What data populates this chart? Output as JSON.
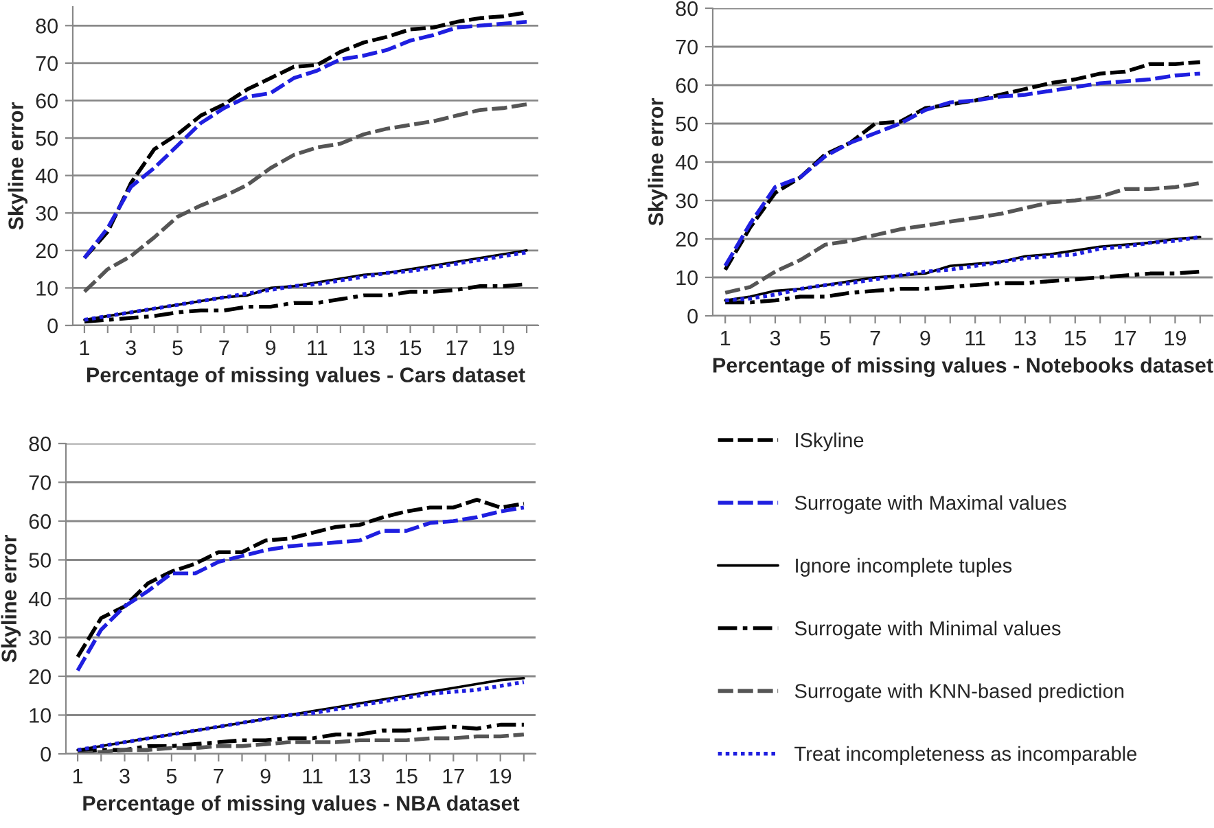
{
  "chart_data": [
    {
      "type": "line",
      "xlabel": "Percentage of missing values - Cars dataset",
      "ylabel": "Skyline error",
      "categories": [
        "1",
        null,
        "3",
        null,
        "5",
        null,
        "7",
        null,
        "9",
        null,
        "11",
        null,
        "13",
        null,
        "15",
        null,
        "17",
        null,
        "19",
        null
      ],
      "ylim": [
        0,
        85
      ],
      "yticks": [
        0,
        10,
        20,
        30,
        40,
        50,
        60,
        70,
        80
      ],
      "grid": "y",
      "legend": false,
      "series": [
        {
          "color": "#000000",
          "line_style": "dashed",
          "values": [
            18,
            25,
            38,
            47,
            51,
            56,
            59,
            63,
            66,
            69,
            69.5,
            73,
            75.5,
            77,
            79,
            79.5,
            81,
            82,
            82.5,
            83.5
          ]
        },
        {
          "color": "#1f1fe0",
          "line_style": "dashed",
          "values": [
            18,
            26,
            37,
            42,
            48,
            54,
            58,
            61,
            62,
            66,
            68,
            71,
            72,
            73.5,
            76,
            77.5,
            79.5,
            80,
            80.5,
            81
          ]
        },
        {
          "color": "#000000",
          "line_style": "solid",
          "values": [
            1.5,
            2.5,
            3.5,
            4.5,
            5.5,
            6.5,
            7.5,
            8,
            10,
            10.5,
            11.5,
            12.5,
            13.5,
            14,
            15,
            16,
            17,
            18,
            19,
            20
          ]
        },
        {
          "color": "#000000",
          "line_style": "dashdot",
          "values": [
            1,
            1.5,
            2,
            2.5,
            3.5,
            4,
            4,
            5,
            5,
            6,
            6,
            7,
            8,
            8,
            9,
            9,
            9.5,
            10.5,
            10.5,
            11
          ]
        },
        {
          "color": "#555555",
          "line_style": "dashed",
          "values": [
            9,
            15,
            18.5,
            23.5,
            29,
            32,
            34.5,
            37.5,
            42,
            45.5,
            47.5,
            48.5,
            51,
            52.5,
            53.5,
            54.5,
            56,
            57.5,
            58,
            59
          ]
        },
        {
          "color": "#1f1fe0",
          "line_style": "dotted",
          "values": [
            1.5,
            2.5,
            3.5,
            4.5,
            5.5,
            6.5,
            7.5,
            8.5,
            9.5,
            10.5,
            11,
            12,
            13,
            14,
            14.5,
            15.5,
            16.5,
            17.5,
            18.5,
            19.5
          ]
        }
      ]
    },
    {
      "type": "line",
      "xlabel": "Percentage of missing values - Notebooks dataset",
      "ylabel": "Skyline error",
      "categories": [
        "1",
        null,
        "3",
        null,
        "5",
        null,
        "7",
        null,
        "9",
        null,
        "11",
        null,
        "13",
        null,
        "15",
        null,
        "17",
        null,
        "19",
        null
      ],
      "ylim": [
        0,
        80
      ],
      "yticks": [
        0,
        10,
        20,
        30,
        40,
        50,
        60,
        70,
        80
      ],
      "grid": "y",
      "legend": false,
      "series": [
        {
          "color": "#000000",
          "line_style": "dashed",
          "values": [
            12,
            23,
            32,
            36,
            42,
            45,
            50,
            50.5,
            54,
            55,
            56,
            57.5,
            59,
            60.5,
            61.5,
            63,
            63.5,
            65.5,
            65.5,
            66
          ]
        },
        {
          "color": "#1f1fe0",
          "line_style": "dashed",
          "values": [
            13,
            24,
            33.5,
            36,
            41.5,
            45,
            47.5,
            50,
            53.5,
            55.5,
            56,
            57,
            57.5,
            58.5,
            59.5,
            60.5,
            61,
            61.5,
            62.5,
            63
          ]
        },
        {
          "color": "#000000",
          "line_style": "solid",
          "values": [
            4,
            5,
            6.5,
            7,
            8,
            9,
            10,
            10.5,
            11,
            13,
            13.5,
            14,
            15.5,
            16,
            17,
            18,
            18.5,
            19,
            20,
            20.5
          ]
        },
        {
          "color": "#000000",
          "line_style": "dashdot",
          "values": [
            3.5,
            3.5,
            4,
            5,
            5,
            6,
            6.5,
            7,
            7,
            7.5,
            8,
            8.5,
            8.5,
            9,
            9.5,
            10,
            10.5,
            11,
            11,
            11.5
          ]
        },
        {
          "color": "#555555",
          "line_style": "dashed",
          "values": [
            6,
            7.5,
            11.5,
            14.5,
            18.5,
            19.5,
            21,
            22.5,
            23.5,
            24.5,
            25.5,
            26.5,
            28,
            29.5,
            30,
            31,
            33,
            33,
            33.5,
            34.5
          ]
        },
        {
          "color": "#1f1fe0",
          "line_style": "dotted",
          "values": [
            4,
            4.5,
            5.5,
            7,
            8,
            8.5,
            9.5,
            10.5,
            11.5,
            12,
            13,
            14,
            15,
            15.5,
            16,
            17.5,
            18,
            19,
            19.5,
            20.5
          ]
        }
      ]
    },
    {
      "type": "line",
      "xlabel": "Percentage of missing values - NBA dataset",
      "ylabel": "Skyline error",
      "categories": [
        "1",
        null,
        "3",
        null,
        "5",
        null,
        "7",
        null,
        "9",
        null,
        "11",
        null,
        "13",
        null,
        "15",
        null,
        "17",
        null,
        "19",
        null
      ],
      "ylim": [
        0,
        80
      ],
      "yticks": [
        0,
        10,
        20,
        30,
        40,
        50,
        60,
        70,
        80
      ],
      "grid": "y",
      "legend": "right",
      "series": [
        {
          "name": "ISkyline",
          "color": "#000000",
          "line_style": "dashed",
          "values": [
            25,
            35,
            38,
            44,
            47,
            49,
            52,
            52,
            55,
            55.5,
            57,
            58.5,
            59,
            61,
            62.5,
            63.5,
            63.5,
            65.5,
            63.5,
            64.5
          ]
        },
        {
          "name": "Surrogate with Maximal values",
          "color": "#1f1fe0",
          "line_style": "dashed",
          "values": [
            21.5,
            32,
            38,
            42,
            46.5,
            46.5,
            49.5,
            51,
            52.5,
            53.5,
            54,
            54.5,
            55,
            57.5,
            57.5,
            59.5,
            60,
            61,
            62.5,
            63.5
          ]
        },
        {
          "name": "Ignore incomplete tuples",
          "color": "#000000",
          "line_style": "solid",
          "values": [
            1,
            2,
            3,
            4,
            5,
            6,
            7,
            8,
            9,
            10,
            11,
            12,
            13,
            14,
            15,
            16,
            17,
            18,
            19,
            19.5
          ]
        },
        {
          "name": "Surrogate with Minimal values",
          "color": "#000000",
          "line_style": "dashdot",
          "values": [
            0.5,
            1,
            1,
            2,
            2,
            2.5,
            3,
            3.5,
            3.5,
            4,
            4,
            5,
            5,
            6,
            6,
            6.5,
            7,
            6.5,
            7.5,
            7.5
          ]
        },
        {
          "name": "Surrogate with KNN-based prediction",
          "color": "#555555",
          "line_style": "dashed",
          "values": [
            0,
            0.5,
            1,
            1,
            1.5,
            1.5,
            2,
            2,
            2.5,
            3,
            3,
            3,
            3.5,
            3.5,
            3.5,
            4,
            4,
            4.5,
            4.5,
            5
          ]
        },
        {
          "name": "Treat incompleteness as incomparable",
          "color": "#1f1fe0",
          "line_style": "dotted",
          "values": [
            1,
            2,
            3,
            4,
            5,
            6,
            7,
            8,
            9,
            10,
            10.5,
            11.5,
            12.5,
            13.5,
            14.5,
            15.5,
            16,
            16.5,
            17.5,
            18.5
          ]
        }
      ]
    }
  ]
}
